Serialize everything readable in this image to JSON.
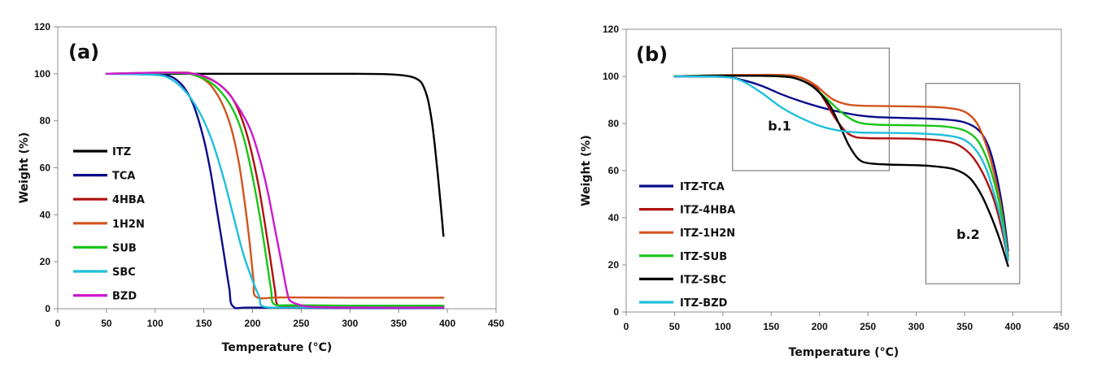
{
  "chart_data": [
    {
      "id": "a",
      "type": "line",
      "panel_label": "(a)",
      "title": "",
      "xlabel": "Temperature (°C)",
      "ylabel": "Weight (%)",
      "xlim": [
        0,
        450
      ],
      "ylim": [
        0,
        120
      ],
      "xticks": [
        0,
        50,
        100,
        150,
        200,
        250,
        300,
        350,
        400,
        450
      ],
      "yticks": [
        0,
        20,
        40,
        60,
        80,
        100,
        120
      ],
      "grid": false,
      "legend_position": "left",
      "series": [
        {
          "name": "ITZ",
          "color": "#000000",
          "points": [
            [
              50,
              100
            ],
            [
              100,
              100
            ],
            [
              200,
              100
            ],
            [
              300,
              100
            ],
            [
              340,
              99.8
            ],
            [
              360,
              99
            ],
            [
              370,
              97.5
            ],
            [
              375,
              95
            ],
            [
              380,
              89
            ],
            [
              384,
              80
            ],
            [
              387,
              70
            ],
            [
              390,
              58
            ],
            [
              393,
              45
            ],
            [
              396,
              31
            ]
          ]
        },
        {
          "name": "TCA",
          "color": "#0a0a8c",
          "points": [
            [
              50,
              100
            ],
            [
              90,
              100
            ],
            [
              110,
              99.5
            ],
            [
              120,
              98
            ],
            [
              130,
              94
            ],
            [
              140,
              86
            ],
            [
              150,
              72
            ],
            [
              157,
              58
            ],
            [
              163,
              43
            ],
            [
              170,
              25
            ],
            [
              176,
              9
            ],
            [
              180,
              1
            ],
            [
              200,
              0.5
            ],
            [
              300,
              0.3
            ],
            [
              396,
              0.3
            ]
          ]
        },
        {
          "name": "4HBA",
          "color": "#b01010",
          "points": [
            [
              50,
              100
            ],
            [
              120,
              100.5
            ],
            [
              140,
              100
            ],
            [
              160,
              97
            ],
            [
              175,
              92
            ],
            [
              185,
              85
            ],
            [
              195,
              73
            ],
            [
              205,
              55
            ],
            [
              212,
              38
            ],
            [
              218,
              22
            ],
            [
              223,
              8
            ],
            [
              226,
              1.5
            ],
            [
              240,
              1
            ],
            [
              300,
              0.8
            ],
            [
              396,
              0.8
            ]
          ]
        },
        {
          "name": "1H2N",
          "color": "#d2541e",
          "points": [
            [
              50,
              100
            ],
            [
              120,
              100.5
            ],
            [
              140,
              99.5
            ],
            [
              155,
              96
            ],
            [
              168,
              88
            ],
            [
              178,
              77
            ],
            [
              186,
              62
            ],
            [
              192,
              45
            ],
            [
              197,
              28
            ],
            [
              201,
              12
            ],
            [
              204,
              5
            ],
            [
              230,
              4.8
            ],
            [
              300,
              4.7
            ],
            [
              396,
              4.7
            ]
          ]
        },
        {
          "name": "SUB",
          "color": "#19c419",
          "points": [
            [
              50,
              100
            ],
            [
              120,
              100.3
            ],
            [
              140,
              99.5
            ],
            [
              158,
              96
            ],
            [
              172,
              90
            ],
            [
              183,
              82
            ],
            [
              192,
              71
            ],
            [
              201,
              54
            ],
            [
              208,
              38
            ],
            [
              214,
              22
            ],
            [
              219,
              8
            ],
            [
              222,
              2
            ],
            [
              240,
              1.5
            ],
            [
              300,
              1.3
            ],
            [
              396,
              1.3
            ]
          ]
        },
        {
          "name": "SBC",
          "color": "#1fbfdc",
          "points": [
            [
              50,
              100
            ],
            [
              100,
              99.5
            ],
            [
              115,
              98
            ],
            [
              130,
              93
            ],
            [
              145,
              84
            ],
            [
              158,
              72
            ],
            [
              170,
              56
            ],
            [
              180,
              40
            ],
            [
              190,
              24
            ],
            [
              200,
              12
            ],
            [
              207,
              5
            ],
            [
              211,
              1
            ],
            [
              240,
              0.5
            ],
            [
              300,
              0.5
            ],
            [
              396,
              0.5
            ]
          ]
        },
        {
          "name": "BZD",
          "color": "#cc19cc",
          "points": [
            [
              50,
              100
            ],
            [
              120,
              100.5
            ],
            [
              150,
              99
            ],
            [
              170,
              94
            ],
            [
              185,
              86
            ],
            [
              198,
              76
            ],
            [
              208,
              63
            ],
            [
              216,
              49
            ],
            [
              223,
              34
            ],
            [
              230,
              19
            ],
            [
              236,
              6
            ],
            [
              240,
              3
            ],
            [
              250,
              1.5
            ],
            [
              260,
              0.8
            ],
            [
              300,
              0.5
            ],
            [
              396,
              0.5
            ]
          ]
        }
      ]
    },
    {
      "id": "b",
      "type": "line",
      "panel_label": "(b)",
      "title": "",
      "xlabel": "Temperature (°C)",
      "ylabel": "Weight (%)",
      "xlim": [
        0,
        450
      ],
      "ylim": [
        0,
        120
      ],
      "xticks": [
        0,
        50,
        100,
        150,
        200,
        250,
        300,
        350,
        400,
        450
      ],
      "yticks": [
        0,
        20,
        40,
        60,
        80,
        100,
        120
      ],
      "grid": false,
      "legend_position": "left",
      "annotations": [
        {
          "text": "b.1",
          "box_x": [
            110,
            272
          ],
          "box_y": [
            60,
            112
          ]
        },
        {
          "text": "b.2",
          "box_x": [
            310,
            407
          ],
          "box_y": [
            12,
            97
          ]
        }
      ],
      "series": [
        {
          "name": "ITZ-TCA",
          "color": "#0a0a8c",
          "points": [
            [
              50,
              100
            ],
            [
              100,
              99.8
            ],
            [
              120,
              98.5
            ],
            [
              140,
              96
            ],
            [
              160,
              92.5
            ],
            [
              180,
              89.5
            ],
            [
              200,
              87
            ],
            [
              220,
              85
            ],
            [
              240,
              83.5
            ],
            [
              260,
              82.7
            ],
            [
              300,
              82.2
            ],
            [
              330,
              81.7
            ],
            [
              350,
              80.5
            ],
            [
              365,
              77
            ],
            [
              375,
              70
            ],
            [
              383,
              58
            ],
            [
              390,
              42
            ],
            [
              395,
              26
            ]
          ]
        },
        {
          "name": "ITZ-4HBA",
          "color": "#b01010",
          "points": [
            [
              50,
              100
            ],
            [
              100,
              100.5
            ],
            [
              160,
              100.6
            ],
            [
              180,
              99.5
            ],
            [
              195,
              96
            ],
            [
              205,
              90
            ],
            [
              215,
              83
            ],
            [
              225,
              77.5
            ],
            [
              235,
              74.5
            ],
            [
              250,
              73.8
            ],
            [
              300,
              73.5
            ],
            [
              330,
              72.5
            ],
            [
              345,
              70.5
            ],
            [
              358,
              66
            ],
            [
              370,
              58
            ],
            [
              380,
              48
            ],
            [
              388,
              36
            ],
            [
              395,
              22
            ]
          ]
        },
        {
          "name": "ITZ-1H2N",
          "color": "#d2541e",
          "points": [
            [
              50,
              100
            ],
            [
              100,
              100.5
            ],
            [
              160,
              100.5
            ],
            [
              180,
              99.6
            ],
            [
              195,
              96.5
            ],
            [
              205,
              93
            ],
            [
              215,
              90
            ],
            [
              230,
              88
            ],
            [
              250,
              87.5
            ],
            [
              300,
              87.2
            ],
            [
              330,
              86.7
            ],
            [
              350,
              85
            ],
            [
              363,
              80
            ],
            [
              373,
              70
            ],
            [
              381,
              58
            ],
            [
              388,
              44
            ],
            [
              395,
              24
            ]
          ]
        },
        {
          "name": "ITZ-SUB",
          "color": "#19c419",
          "points": [
            [
              50,
              100
            ],
            [
              100,
              100.3
            ],
            [
              160,
              100
            ],
            [
              180,
              98.5
            ],
            [
              195,
              95
            ],
            [
              210,
              89.5
            ],
            [
              225,
              84
            ],
            [
              240,
              80.5
            ],
            [
              260,
              79.5
            ],
            [
              300,
              79.2
            ],
            [
              330,
              78.7
            ],
            [
              350,
              77
            ],
            [
              363,
              73
            ],
            [
              373,
              65
            ],
            [
              382,
              53
            ],
            [
              389,
              40
            ],
            [
              395,
              23
            ]
          ]
        },
        {
          "name": "ITZ-SBC",
          "color": "#000000",
          "points": [
            [
              50,
              100
            ],
            [
              100,
              100.3
            ],
            [
              160,
              100
            ],
            [
              180,
              98.5
            ],
            [
              195,
              95
            ],
            [
              210,
              88
            ],
            [
              220,
              80
            ],
            [
              230,
              71
            ],
            [
              240,
              65
            ],
            [
              250,
              63.2
            ],
            [
              270,
              62.6
            ],
            [
              300,
              62.3
            ],
            [
              320,
              61.8
            ],
            [
              340,
              60.5
            ],
            [
              355,
              57
            ],
            [
              367,
              50
            ],
            [
              378,
              40
            ],
            [
              387,
              30
            ],
            [
              395,
              19.5
            ]
          ]
        },
        {
          "name": "ITZ-BZD",
          "color": "#1fbfdc",
          "points": [
            [
              50,
              100
            ],
            [
              100,
              99.8
            ],
            [
              120,
              98
            ],
            [
              140,
              93
            ],
            [
              160,
              87
            ],
            [
              180,
              82.5
            ],
            [
              200,
              79
            ],
            [
              220,
              77
            ],
            [
              240,
              76.2
            ],
            [
              270,
              76
            ],
            [
              300,
              75.8
            ],
            [
              330,
              75
            ],
            [
              350,
              73
            ],
            [
              363,
              68
            ],
            [
              373,
              60
            ],
            [
              382,
              48
            ],
            [
              389,
              37
            ],
            [
              395,
              22
            ]
          ]
        }
      ]
    }
  ]
}
